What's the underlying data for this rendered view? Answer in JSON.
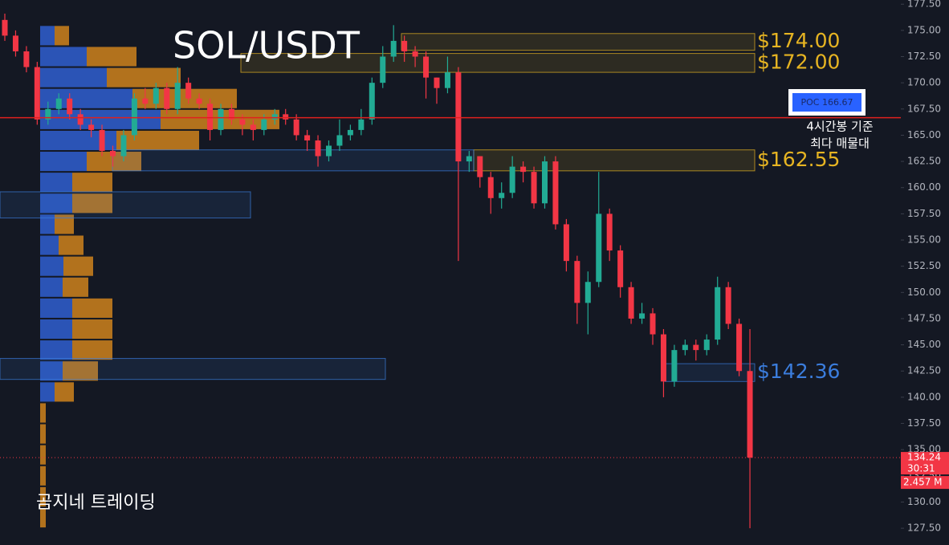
{
  "chart_data": {
    "type": "candlestick",
    "title": "SOL/USDT",
    "watermark": "곰지네 트레이딩",
    "ylim": [
      125.9,
      177.9
    ],
    "yticks": [
      {
        "value": 177.5,
        "label": "177.50"
      },
      {
        "value": 175,
        "label": "175.00"
      },
      {
        "value": 172.5,
        "label": "172.50"
      },
      {
        "value": 170,
        "label": "170.00"
      },
      {
        "value": 167.5,
        "label": "167.50"
      },
      {
        "value": 165,
        "label": "165.00"
      },
      {
        "value": 162.5,
        "label": "162.50"
      },
      {
        "value": 160,
        "label": "160.00"
      },
      {
        "value": 157.5,
        "label": "157.50"
      },
      {
        "value": 155,
        "label": "155.00"
      },
      {
        "value": 152.5,
        "label": "152.50"
      },
      {
        "value": 150,
        "label": "150.00"
      },
      {
        "value": 147.5,
        "label": "147.50"
      },
      {
        "value": 145,
        "label": "145.00"
      },
      {
        "value": 142.5,
        "label": "142.50"
      },
      {
        "value": 140,
        "label": "140.00"
      },
      {
        "value": 137.5,
        "label": "137.50"
      },
      {
        "value": 135,
        "label": "135.00"
      },
      {
        "value": 132.5,
        "label": "132.50"
      },
      {
        "value": 130,
        "label": "130.00"
      },
      {
        "value": 127.5,
        "label": "127.50"
      }
    ],
    "up_color": "#22ab94",
    "down_color": "#f23645",
    "candles": {
      "open": [
        176,
        174.5,
        173,
        171.5,
        166.5,
        167.5,
        168.5,
        167,
        166,
        165.5,
        163.5,
        163,
        165,
        168.5,
        168,
        169.5,
        167.5,
        170,
        168.5,
        168,
        165.5,
        167.5,
        166.5,
        166,
        165.5,
        166.5,
        167,
        166.5,
        165,
        164.5,
        163,
        164,
        165,
        165.5,
        166.5,
        170,
        172.5,
        174,
        173,
        172.5,
        170.5,
        169.5,
        171,
        162.5,
        163,
        161,
        159,
        159.5,
        162,
        161.5,
        158.5,
        162.5,
        156.5,
        153,
        149,
        151,
        157.5,
        154,
        150.5,
        147.5,
        148,
        146,
        141.5,
        144.5,
        145,
        144.5,
        145.5,
        150.5,
        147,
        142.5
      ],
      "high": [
        176.6,
        175,
        173.5,
        172,
        168.2,
        169,
        169,
        167.5,
        166.5,
        166,
        164,
        165.5,
        169,
        169.5,
        170,
        170,
        171.5,
        170.5,
        169,
        168.5,
        168,
        168,
        167,
        166.5,
        167,
        167.5,
        167.5,
        167,
        165.5,
        165,
        164.5,
        166.5,
        166,
        167.5,
        170.5,
        173.5,
        175.5,
        174.5,
        173.5,
        173,
        170.5,
        172.5,
        171.5,
        163.5,
        163,
        161.5,
        160.5,
        163,
        162.5,
        162,
        163,
        163,
        157,
        153.5,
        152,
        161.5,
        158,
        154.5,
        151,
        149,
        148.5,
        146.5,
        145,
        145.5,
        145.5,
        146,
        151.5,
        151,
        147.5,
        146.5
      ],
      "low": [
        174,
        172.5,
        171,
        166,
        166,
        167,
        166.5,
        165.5,
        164.8,
        163,
        162,
        162.5,
        164.5,
        167.5,
        167.5,
        167,
        167,
        168,
        167.5,
        164.5,
        165,
        166,
        165,
        164.5,
        165,
        166,
        166,
        164.5,
        163.5,
        162,
        162.5,
        163.5,
        164.5,
        165,
        166,
        169.5,
        172,
        172,
        171.5,
        168.5,
        168,
        169,
        153,
        161.5,
        160,
        157.5,
        158,
        159,
        160.5,
        158,
        158,
        156,
        152,
        147,
        146,
        150.5,
        153,
        149.5,
        147,
        147,
        145,
        140,
        141,
        144,
        143.5,
        144,
        145,
        146.5,
        142,
        127.5
      ],
      "close": [
        174.5,
        173,
        171.5,
        166.5,
        167.5,
        168.5,
        167,
        166,
        165.5,
        163.5,
        163,
        165,
        168.5,
        168,
        169.5,
        167.5,
        170,
        168.5,
        168,
        165.5,
        167.5,
        166.5,
        166,
        165.5,
        166.5,
        167,
        166.5,
        165,
        164.5,
        163,
        164,
        165,
        165.5,
        166.5,
        170,
        172.5,
        174,
        173,
        172.5,
        170.5,
        169.5,
        171,
        162.5,
        163,
        161,
        159,
        159.5,
        162,
        161.5,
        158.5,
        162.5,
        156.5,
        153,
        149,
        151,
        157.5,
        154,
        150.5,
        147.5,
        148,
        146,
        141.5,
        144.5,
        145,
        144.5,
        145.5,
        150.5,
        147,
        142.5,
        134.24
      ]
    },
    "profile": {
      "bins": [
        175.5,
        173.5,
        171.5,
        169.5,
        167.5,
        165.5,
        163.5,
        161.5,
        159.5,
        157.5,
        155.5,
        153.5,
        151.5,
        149.5,
        147.5,
        145.5,
        143.5,
        141.5,
        139.5,
        137.5,
        135.5,
        133.5,
        131.5,
        129.5,
        127.5
      ],
      "buy": [
        18,
        58,
        83,
        115,
        150,
        95,
        58,
        40,
        40,
        18,
        23,
        29,
        28,
        40,
        40,
        40,
        28,
        18,
        0,
        0,
        0,
        0,
        0,
        0
      ],
      "sell": [
        18,
        62,
        92,
        130,
        148,
        103,
        68,
        50,
        50,
        24,
        31,
        37,
        32,
        50,
        50,
        50,
        44,
        24,
        7,
        7,
        7,
        7,
        7,
        7
      ],
      "buy_color": "#2f5fd0",
      "sell_color": "#d98a1c"
    },
    "zones": [
      {
        "label": "$174.00",
        "low": 173.1,
        "high": 174.7,
        "color": "#e6b422"
      },
      {
        "label": "$172.00",
        "low": 171.0,
        "high": 172.8,
        "color": "#e6b422"
      },
      {
        "label": "$162.55",
        "low": 161.6,
        "high": 163.6,
        "color": "#e6b422"
      },
      {
        "low": 161.6,
        "high": 163.6,
        "color": "#3b7ddd"
      },
      {
        "low": 157.1,
        "high": 159.6,
        "color": "#3b7ddd"
      },
      {
        "low": 141.7,
        "high": 143.7,
        "color": "#3b7ddd"
      },
      {
        "label": "$142.36",
        "low": 141.5,
        "high": 143.2,
        "color": "#3b7ddd"
      }
    ],
    "poc": {
      "label": "POC 166.67",
      "value": 166.67,
      "color": "#e0201e"
    },
    "poc_note": [
      "4시간봉 기준",
      "최다 매물대"
    ],
    "last_price": {
      "value": 134.24,
      "countdown": "30:31",
      "volume": "2.457 M",
      "color": "#f23645"
    }
  }
}
